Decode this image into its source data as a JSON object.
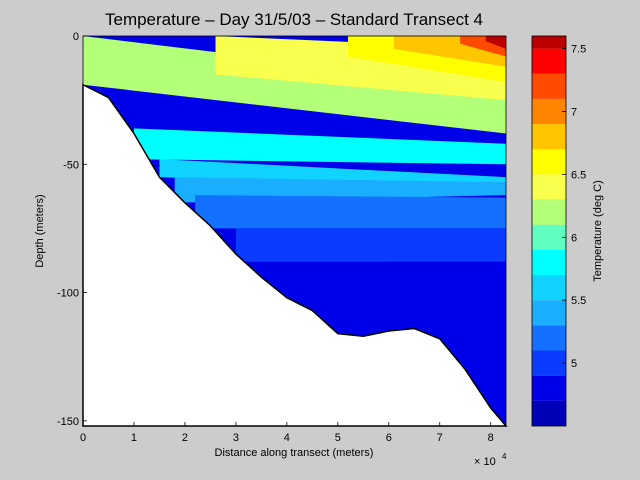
{
  "chart_data": {
    "type": "heatmap",
    "subtype": "filled-contour depth section",
    "title": "Temperature – Day 31/5/03 – Standard Transect 4",
    "xlabel": "Distance along transect (meters)",
    "ylabel": "Depth (meters)",
    "x_exponent_label": "× 10",
    "x_exponent_value": "4",
    "x_tick_scale": 10000,
    "xlim": [
      0,
      83000
    ],
    "ylim": [
      -152,
      0
    ],
    "x_ticks": [
      0,
      1,
      2,
      3,
      4,
      5,
      6,
      7,
      8
    ],
    "y_ticks": [
      0,
      -50,
      -100,
      -150
    ],
    "colorbar": {
      "label": "Temperature (deg C)",
      "range": [
        4.5,
        7.6
      ],
      "ticks": [
        5,
        5.5,
        6,
        6.5,
        7,
        7.5
      ],
      "levels": [
        4.5,
        4.7,
        4.9,
        5.1,
        5.3,
        5.5,
        5.7,
        5.9,
        6.1,
        6.3,
        6.5,
        6.7,
        6.9,
        7.1,
        7.3,
        7.5
      ],
      "colors": [
        "#0000b8",
        "#0000e8",
        "#0a3cff",
        "#1470ff",
        "#1aaeff",
        "#10d4ff",
        "#00ffff",
        "#5effc0",
        "#b4ff78",
        "#f8ff4c",
        "#ffff00",
        "#ffc600",
        "#ff8400",
        "#ff4a00",
        "#ff0000",
        "#bb0000"
      ]
    },
    "bottom_profile": {
      "x": [
        0,
        5000,
        10000,
        15000,
        20000,
        25000,
        30000,
        35000,
        40000,
        45000,
        50000,
        55000,
        60000,
        65000,
        70000,
        75000,
        80000,
        83000
      ],
      "depth": [
        -19,
        -24,
        -38,
        -55,
        -65,
        -74,
        -85,
        -94,
        -102,
        -107,
        -116,
        -117,
        -115,
        -114,
        -118,
        -130,
        -145,
        -152
      ]
    },
    "temperature_bands": [
      {
        "temperature": 6.2,
        "x": [
          0,
          83000
        ],
        "depth_from": [
          0,
          -20
        ],
        "depth_to": [
          -19,
          -38
        ]
      },
      {
        "temperature": 6.4,
        "x": [
          26000,
          83000
        ],
        "depth_from": [
          0,
          -5
        ],
        "depth_to": [
          -15,
          -25
        ]
      },
      {
        "temperature": 6.6,
        "x": [
          52000,
          83000
        ],
        "depth_from": [
          0,
          0
        ],
        "depth_to": [
          -8,
          -18
        ]
      },
      {
        "temperature": 6.8,
        "x": [
          61000,
          83000
        ],
        "depth_from": [
          0,
          0
        ],
        "depth_to": [
          -5,
          -12
        ]
      },
      {
        "temperature": 7.2,
        "x": [
          74000,
          83000
        ],
        "depth_from": [
          0,
          0
        ],
        "depth_to": [
          -3,
          -8
        ]
      },
      {
        "temperature": 7.5,
        "x": [
          79000,
          83000
        ],
        "depth_from": [
          0,
          0
        ],
        "depth_to": [
          -2,
          -5
        ]
      },
      {
        "temperature": 5.8,
        "x": [
          10000,
          83000
        ],
        "depth_from": [
          -36,
          -42
        ],
        "depth_to": [
          -48,
          -50
        ]
      },
      {
        "temperature": 5.6,
        "x": [
          15000,
          83000
        ],
        "depth_from": [
          -48,
          -55
        ],
        "depth_to": [
          -55,
          -60
        ]
      },
      {
        "temperature": 5.4,
        "x": [
          18000,
          83000
        ],
        "depth_from": [
          -55,
          -57
        ],
        "depth_to": [
          -65,
          -62
        ]
      },
      {
        "temperature": 5.2,
        "x": [
          22000,
          83000
        ],
        "depth_from": [
          -62,
          -63
        ],
        "depth_to": [
          -75,
          -75
        ]
      },
      {
        "temperature": 5.0,
        "x": [
          30000,
          83000
        ],
        "depth_from": [
          -75,
          -75
        ],
        "depth_to": [
          -88,
          -88
        ]
      },
      {
        "temperature": 4.8,
        "x": [
          60000,
          83000
        ],
        "depth_from": [
          -88,
          -88
        ],
        "depth_to": [
          -114,
          -152
        ]
      }
    ]
  }
}
